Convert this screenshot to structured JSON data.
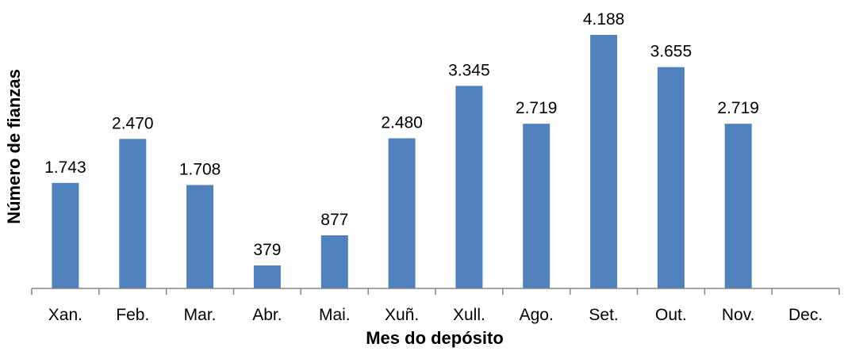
{
  "chart_data": {
    "type": "bar",
    "title": "",
    "xlabel": "Mes do depósito",
    "ylabel": "Número de fianzas",
    "categories": [
      "Xan.",
      "Feb.",
      "Mar.",
      "Abr.",
      "Mai.",
      "Xuñ.",
      "Xull.",
      "Ago.",
      "Set.",
      "Out.",
      "Nov.",
      "Dec."
    ],
    "values": [
      1743,
      2470,
      1708,
      379,
      877,
      2480,
      3345,
      2719,
      4188,
      3655,
      2719,
      null
    ],
    "value_labels": [
      "1.743",
      "2.470",
      "1.708",
      "379",
      "877",
      "2.480",
      "3.345",
      "2.719",
      "4.188",
      "3.655",
      "2.719",
      ""
    ],
    "ylim": [
      0,
      4188
    ],
    "grid": false,
    "legend": "none",
    "colors": {
      "bar": "#4F81BD",
      "axis": "#868686"
    }
  }
}
